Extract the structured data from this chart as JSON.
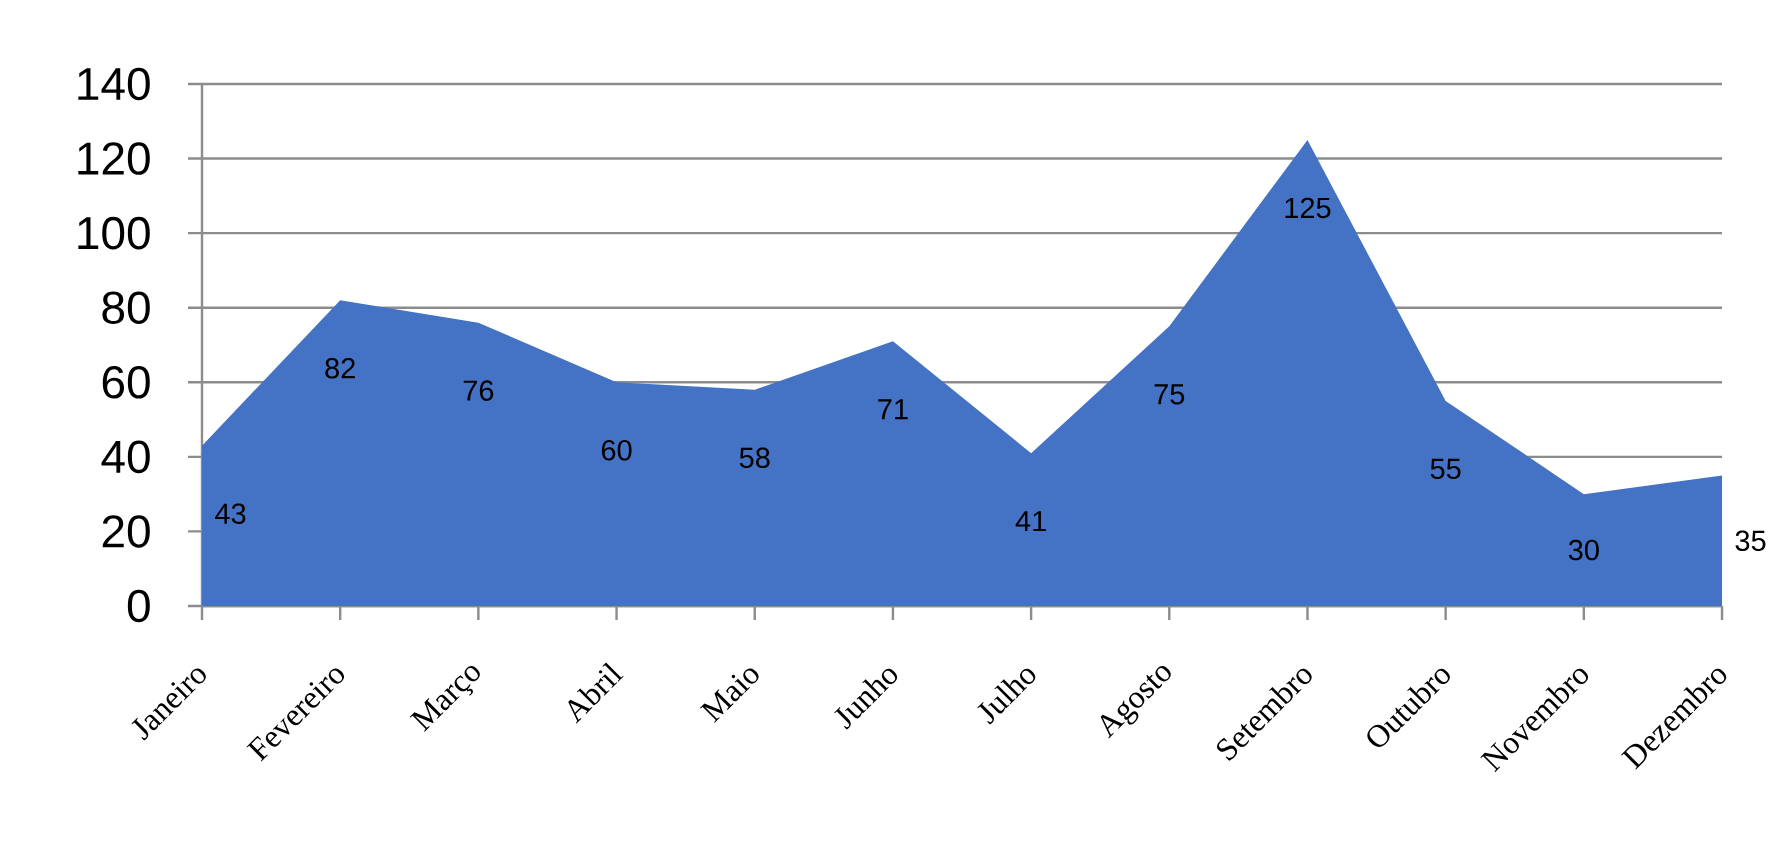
{
  "chart_data": {
    "type": "area",
    "categories": [
      "Janeiro",
      "Fevereiro",
      "Março",
      "Abril",
      "Maio",
      "Junho",
      "Julho",
      "Agosto",
      "Setembro",
      "Outubro",
      "Novembro",
      "Dezembro"
    ],
    "values": [
      43,
      82,
      76,
      60,
      58,
      71,
      41,
      75,
      125,
      55,
      30,
      35
    ],
    "color": "#4472c4",
    "ylim": [
      0,
      140
    ],
    "yticks": [
      0,
      20,
      40,
      60,
      80,
      100,
      120,
      140
    ],
    "grid": "y",
    "data_labels": true
  }
}
